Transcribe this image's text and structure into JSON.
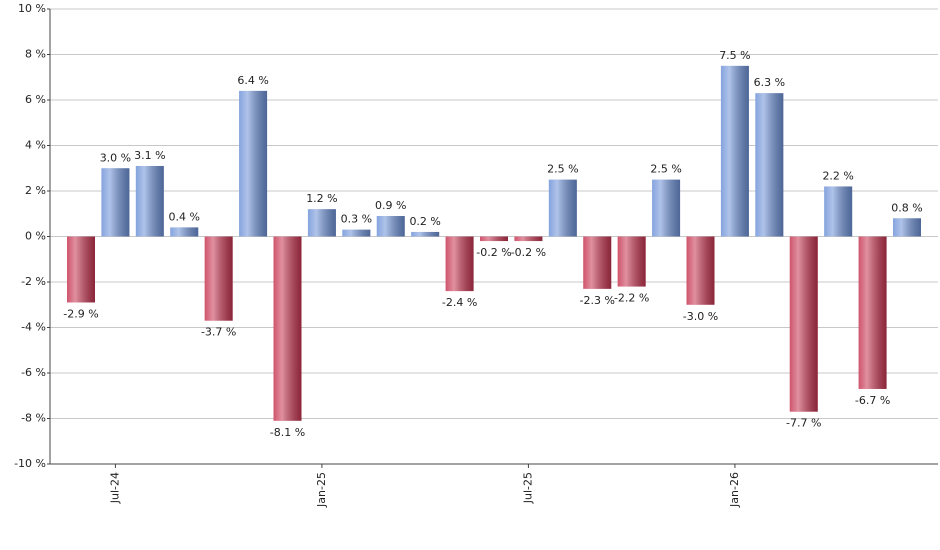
{
  "chart_data": {
    "type": "bar",
    "categories": [
      null,
      "Jul-24",
      null,
      null,
      null,
      null,
      null,
      "Jan-25",
      null,
      null,
      null,
      null,
      null,
      "Jul-25",
      null,
      null,
      null,
      null,
      null,
      "Jan-26",
      null,
      null,
      null,
      null,
      null
    ],
    "values": [
      -2.9,
      3.0,
      3.1,
      0.4,
      -3.7,
      6.4,
      -8.1,
      1.2,
      0.3,
      0.9,
      0.2,
      -2.4,
      -0.2,
      -0.2,
      2.5,
      -2.3,
      -2.2,
      2.5,
      -3.0,
      7.5,
      6.3,
      -7.7,
      2.2,
      -6.7,
      0.8
    ],
    "value_labels": [
      "-2.9 %",
      "3.0 %",
      "3.1 %",
      "0.4 %",
      "-3.7 %",
      "6.4 %",
      "-8.1 %",
      "1.2 %",
      "0.3 %",
      "0.9 %",
      "0.2 %",
      "-2.4 %",
      "-0.2 %",
      "-0.2 %",
      "2.5 %",
      "-2.3 %",
      "-2.2 %",
      "2.5 %",
      "-3.0 %",
      "7.5 %",
      "6.3 %",
      "-7.7 %",
      "2.2 %",
      "-6.7 %",
      "0.8 %"
    ],
    "positive_color": "#6f93d8",
    "negative_color": "#c73652",
    "ylim": [
      -10,
      10
    ],
    "yticks": [
      {
        "value": -10,
        "label": "-10 %"
      },
      {
        "value": -8,
        "label": "-8 %"
      },
      {
        "value": -6,
        "label": "-6 %"
      },
      {
        "value": -4,
        "label": "-4 %"
      },
      {
        "value": -2,
        "label": "-2 %"
      },
      {
        "value": 0,
        "label": "0 %"
      },
      {
        "value": 2,
        "label": "2 %"
      },
      {
        "value": 4,
        "label": "4 %"
      },
      {
        "value": 6,
        "label": "6 %"
      },
      {
        "value": 8,
        "label": "8 %"
      },
      {
        "value": 10,
        "label": "10 %"
      }
    ],
    "grid": true
  }
}
